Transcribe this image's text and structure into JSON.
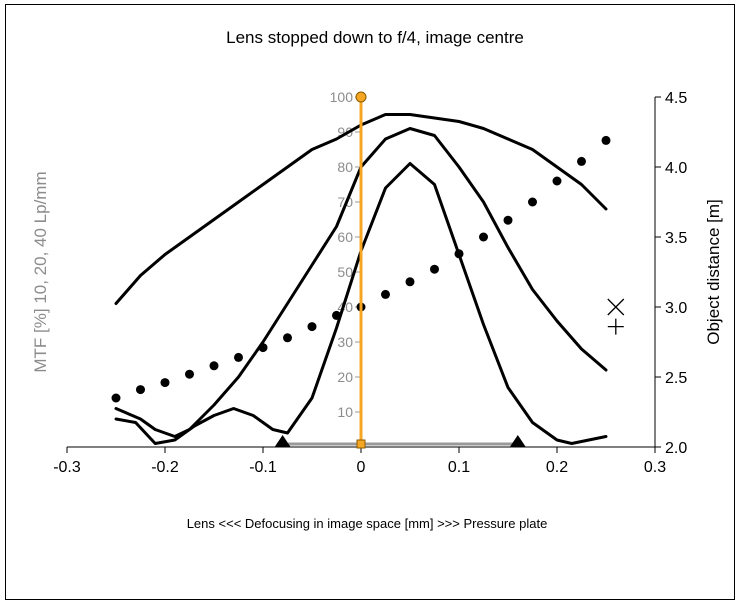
{
  "chart_data": {
    "type": "line",
    "title": "Lens stopped down to f/4, image centre",
    "xlabel": "Lens <<<  Defocusing in image space   [mm]  >>> Pressure plate",
    "ylabel_left": "MTF [%]   10,  20,  40  Lp/mm",
    "ylabel_right": "Object distance [m]",
    "xlim": [
      -0.3,
      0.3
    ],
    "ylim_left": [
      0,
      100
    ],
    "ylim_right": [
      2.0,
      4.5
    ],
    "x_ticks": [
      "-0.3",
      "-0.2",
      "-0.1",
      "0",
      "0.1",
      "0.2",
      "0.3"
    ],
    "y_left_ticks": [
      "10",
      "20",
      "30",
      "40",
      "50",
      "60",
      "70",
      "80",
      "90",
      "100"
    ],
    "y_right_ticks": [
      "2.0",
      "2.5",
      "3.0",
      "3.5",
      "4.0",
      "4.5"
    ],
    "gridlines": false,
    "series": [
      {
        "axis": "left",
        "style": "line",
        "color": "#000000",
        "points": [
          [
            -0.25,
            41
          ],
          [
            -0.225,
            49
          ],
          [
            -0.2,
            55
          ],
          [
            -0.175,
            60
          ],
          [
            -0.15,
            65
          ],
          [
            -0.125,
            70
          ],
          [
            -0.1,
            75
          ],
          [
            -0.075,
            80
          ],
          [
            -0.05,
            85
          ],
          [
            -0.025,
            88
          ],
          [
            0,
            92
          ],
          [
            0.025,
            95
          ],
          [
            0.05,
            95
          ],
          [
            0.075,
            94
          ],
          [
            0.1,
            93
          ],
          [
            0.125,
            91
          ],
          [
            0.15,
            88
          ],
          [
            0.175,
            85
          ],
          [
            0.2,
            80
          ],
          [
            0.225,
            75
          ],
          [
            0.25,
            68
          ]
        ]
      },
      {
        "axis": "left",
        "style": "line",
        "color": "#000000",
        "points": [
          [
            -0.25,
            11
          ],
          [
            -0.225,
            8
          ],
          [
            -0.21,
            5
          ],
          [
            -0.19,
            3
          ],
          [
            -0.175,
            5
          ],
          [
            -0.15,
            12
          ],
          [
            -0.125,
            20
          ],
          [
            -0.1,
            30
          ],
          [
            -0.075,
            41
          ],
          [
            -0.05,
            52
          ],
          [
            -0.025,
            63
          ],
          [
            0,
            80
          ],
          [
            0.025,
            88
          ],
          [
            0.05,
            91
          ],
          [
            0.075,
            89
          ],
          [
            0.1,
            80
          ],
          [
            0.125,
            70
          ],
          [
            0.15,
            57
          ],
          [
            0.175,
            45
          ],
          [
            0.2,
            36
          ],
          [
            0.225,
            28
          ],
          [
            0.25,
            22
          ]
        ]
      },
      {
        "axis": "left",
        "style": "line",
        "color": "#000000",
        "points": [
          [
            -0.25,
            8
          ],
          [
            -0.23,
            7
          ],
          [
            -0.21,
            1
          ],
          [
            -0.19,
            2
          ],
          [
            -0.17,
            6
          ],
          [
            -0.15,
            9
          ],
          [
            -0.13,
            11
          ],
          [
            -0.11,
            9
          ],
          [
            -0.09,
            5
          ],
          [
            -0.075,
            4
          ],
          [
            -0.05,
            14
          ],
          [
            -0.025,
            34
          ],
          [
            0,
            56
          ],
          [
            0.025,
            74
          ],
          [
            0.05,
            81
          ],
          [
            0.075,
            75
          ],
          [
            0.1,
            55
          ],
          [
            0.125,
            35
          ],
          [
            0.15,
            17
          ],
          [
            0.175,
            7
          ],
          [
            0.2,
            2
          ],
          [
            0.215,
            1
          ],
          [
            0.25,
            3
          ]
        ]
      },
      {
        "axis": "right",
        "style": "dots",
        "color": "#000000",
        "points": [
          [
            -0.25,
            2.35
          ],
          [
            -0.225,
            2.41
          ],
          [
            -0.2,
            2.46
          ],
          [
            -0.175,
            2.52
          ],
          [
            -0.15,
            2.58
          ],
          [
            -0.125,
            2.64
          ],
          [
            -0.1,
            2.71
          ],
          [
            -0.075,
            2.78
          ],
          [
            -0.05,
            2.86
          ],
          [
            -0.025,
            2.94
          ],
          [
            0,
            3.0
          ],
          [
            0.025,
            3.09
          ],
          [
            0.05,
            3.18
          ],
          [
            0.075,
            3.27
          ],
          [
            0.1,
            3.38
          ],
          [
            0.125,
            3.5
          ],
          [
            0.15,
            3.62
          ],
          [
            0.175,
            3.75
          ],
          [
            0.2,
            3.9
          ],
          [
            0.225,
            4.04
          ],
          [
            0.25,
            4.19
          ]
        ]
      }
    ],
    "markers": {
      "cross_x": {
        "x": 0.26,
        "y_right": 3.0
      },
      "plus": {
        "x": 0.26,
        "y_right": 2.86
      },
      "triangles": [
        -0.08,
        0.16
      ],
      "baseline_segment": [
        -0.08,
        0.16
      ],
      "focus_line": {
        "x": 0,
        "color": "#F5A623"
      }
    }
  }
}
